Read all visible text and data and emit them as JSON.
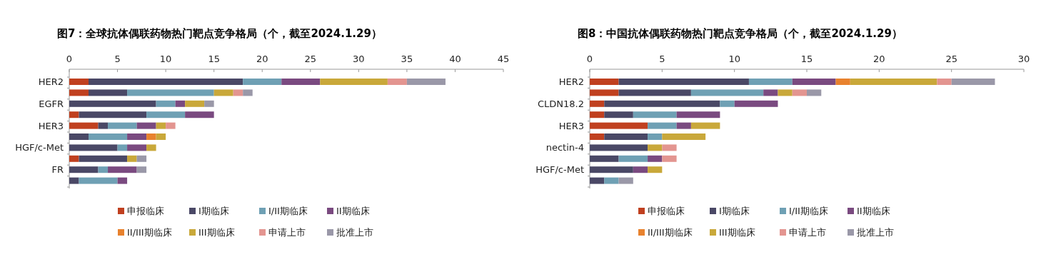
{
  "chart_data": [
    {
      "type": "bar",
      "orientation": "horizontal",
      "stacked": true,
      "title": "图7：全球抗体偶联药物热门靶点竞争格局（个，截至2024.1.29）",
      "legend": "bottom",
      "grid": false,
      "categories": [
        "HER2",
        null,
        "EGFR",
        null,
        "HER3",
        null,
        "HGF/c-Met",
        null,
        "FR",
        null
      ],
      "xlim": [
        0,
        45
      ],
      "xticks": [
        0,
        5,
        10,
        15,
        20,
        25,
        30,
        35,
        40,
        45
      ],
      "series": [
        {
          "name": "申报临床",
          "color": "#c0401f",
          "values": [
            2,
            2,
            null,
            1,
            3,
            null,
            null,
            1,
            null,
            null
          ]
        },
        {
          "name": "I期临床",
          "color": "#4a4866",
          "values": [
            16,
            4,
            9,
            7,
            1,
            2,
            5,
            5,
            3,
            1
          ]
        },
        {
          "name": "I/II期临床",
          "color": "#6fa0b4",
          "values": [
            4,
            9,
            2,
            4,
            3,
            4,
            1,
            null,
            1,
            4
          ]
        },
        {
          "name": "II期临床",
          "color": "#7a4a80",
          "values": [
            4,
            null,
            1,
            3,
            2,
            2,
            2,
            null,
            3,
            1
          ]
        },
        {
          "name": "II/III期临床",
          "color": "#e8822e",
          "values": [
            null,
            null,
            null,
            null,
            null,
            1,
            null,
            null,
            null,
            null
          ]
        },
        {
          "name": "III期临床",
          "color": "#c9a83a",
          "values": [
            7,
            2,
            2,
            null,
            1,
            1,
            1,
            1,
            null,
            null
          ]
        },
        {
          "name": "申请上市",
          "color": "#e39590",
          "values": [
            2,
            1,
            null,
            null,
            1,
            null,
            null,
            null,
            null,
            null
          ]
        },
        {
          "name": "批准上市",
          "color": "#9a98a8",
          "values": [
            4,
            1,
            1,
            null,
            null,
            null,
            null,
            1,
            1,
            null
          ]
        }
      ]
    },
    {
      "type": "bar",
      "orientation": "horizontal",
      "stacked": true,
      "title": "图8：中国抗体偶联药物热门靶点竞争格局（个，截至2024.1.29）",
      "legend": "bottom",
      "grid": false,
      "categories": [
        "HER2",
        null,
        "CLDN18.2",
        null,
        "HER3",
        null,
        "nectin-4",
        null,
        "HGF/c-Met",
        null
      ],
      "xlim": [
        0,
        30
      ],
      "xticks": [
        0,
        5,
        10,
        15,
        20,
        25,
        30
      ],
      "series": [
        {
          "name": "申报临床",
          "color": "#c0401f",
          "values": [
            2,
            2,
            1,
            1,
            4,
            1,
            null,
            null,
            null,
            null
          ]
        },
        {
          "name": "I期临床",
          "color": "#4a4866",
          "values": [
            9,
            5,
            8,
            2,
            null,
            3,
            4,
            2,
            3,
            1
          ]
        },
        {
          "name": "I/II期临床",
          "color": "#6fa0b4",
          "values": [
            3,
            5,
            1,
            3,
            2,
            1,
            null,
            2,
            null,
            1
          ]
        },
        {
          "name": "II期临床",
          "color": "#7a4a80",
          "values": [
            3,
            1,
            3,
            3,
            1,
            null,
            null,
            1,
            1,
            null
          ]
        },
        {
          "name": "II/III期临床",
          "color": "#e8822e",
          "values": [
            1,
            null,
            null,
            null,
            null,
            null,
            null,
            null,
            null,
            null
          ]
        },
        {
          "name": "III期临床",
          "color": "#c9a83a",
          "values": [
            6,
            1,
            null,
            null,
            2,
            3,
            1,
            null,
            1,
            null
          ]
        },
        {
          "name": "申请上市",
          "color": "#e39590",
          "values": [
            1,
            1,
            null,
            null,
            null,
            null,
            1,
            1,
            null,
            null
          ]
        },
        {
          "name": "批准上市",
          "color": "#9a98a8",
          "values": [
            3,
            1,
            null,
            null,
            null,
            null,
            null,
            null,
            null,
            1
          ]
        }
      ]
    }
  ]
}
